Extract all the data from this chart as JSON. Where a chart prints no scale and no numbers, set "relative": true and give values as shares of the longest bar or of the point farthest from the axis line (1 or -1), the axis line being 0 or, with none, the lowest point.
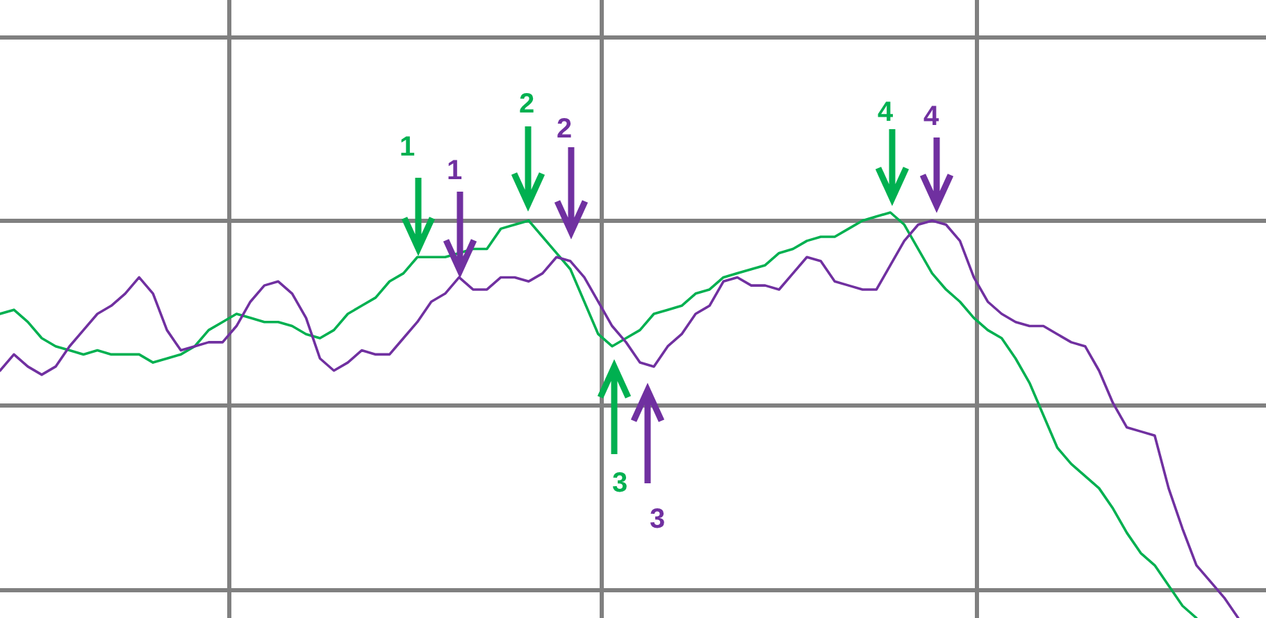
{
  "chart_data": {
    "type": "line",
    "relative": true,
    "grid": true,
    "categories": [
      null,
      null,
      null,
      null,
      null,
      null,
      null,
      null,
      null,
      null,
      null,
      null,
      null,
      null,
      null,
      null,
      null,
      null,
      null,
      null,
      null,
      null,
      null,
      null,
      null,
      null,
      null,
      null,
      null,
      null,
      null,
      null,
      null,
      null,
      null,
      null,
      null,
      null,
      null,
      null,
      null,
      null,
      null,
      null,
      null,
      null,
      null,
      null,
      null,
      null,
      null,
      null,
      null,
      null,
      null,
      null,
      null,
      null,
      null,
      null,
      null,
      null,
      null,
      null,
      null,
      null,
      null,
      null,
      null,
      null,
      null,
      null,
      null,
      null,
      null,
      null,
      null,
      null,
      null,
      null,
      null,
      null,
      null,
      null,
      null,
      null,
      null,
      null,
      null,
      null,
      null,
      null
    ],
    "series": [
      {
        "color": "#00b050",
        "values": [
          0.75,
          0.76,
          0.73,
          0.69,
          0.67,
          0.66,
          0.65,
          0.66,
          0.65,
          0.65,
          0.65,
          0.63,
          0.64,
          0.65,
          0.67,
          0.71,
          0.73,
          0.75,
          0.74,
          0.73,
          0.73,
          0.72,
          0.7,
          0.69,
          0.71,
          0.75,
          0.77,
          0.79,
          0.83,
          0.85,
          0.89,
          0.89,
          0.89,
          0.9,
          0.91,
          0.91,
          0.96,
          0.97,
          0.98,
          0.94,
          0.9,
          0.86,
          0.78,
          0.7,
          0.67,
          0.69,
          0.71,
          0.75,
          0.76,
          0.77,
          0.8,
          0.81,
          0.84,
          0.85,
          0.86,
          0.87,
          0.9,
          0.91,
          0.93,
          0.94,
          0.94,
          0.96,
          0.98,
          0.99,
          1.0,
          0.97,
          0.91,
          0.85,
          0.81,
          0.78,
          0.74,
          0.71,
          0.69,
          0.64,
          0.58,
          0.5,
          0.42,
          0.38,
          0.35,
          0.32,
          0.27,
          0.21,
          0.16,
          0.13,
          0.08,
          0.03,
          0,
          null,
          null,
          null,
          null,
          null
        ]
      },
      {
        "color": "#7030a0",
        "values": [
          0.61,
          0.65,
          0.62,
          0.6,
          0.62,
          0.67,
          0.71,
          0.75,
          0.77,
          0.8,
          0.84,
          0.8,
          0.71,
          0.66,
          0.67,
          0.68,
          0.68,
          0.72,
          0.78,
          0.82,
          0.83,
          0.8,
          0.74,
          0.64,
          0.61,
          0.63,
          0.66,
          0.65,
          0.65,
          0.69,
          0.73,
          0.78,
          0.8,
          0.84,
          0.81,
          0.81,
          0.84,
          0.84,
          0.83,
          0.85,
          0.89,
          0.88,
          0.84,
          0.78,
          0.72,
          0.68,
          0.63,
          0.62,
          0.67,
          0.7,
          0.75,
          0.77,
          0.83,
          0.84,
          0.82,
          0.82,
          0.81,
          0.85,
          0.89,
          0.88,
          0.83,
          0.82,
          0.81,
          0.81,
          0.87,
          0.93,
          0.97,
          0.98,
          0.97,
          0.93,
          0.84,
          0.78,
          0.75,
          0.73,
          0.72,
          0.72,
          0.7,
          0.68,
          0.67,
          0.61,
          0.53,
          0.47,
          0.46,
          0.45,
          0.32,
          0.22,
          0.13,
          0.09,
          0.05,
          0,
          null,
          null
        ]
      }
    ],
    "annotations": [
      "1",
      "1",
      "2",
      "2",
      "3",
      "3",
      "4",
      "4"
    ]
  }
}
